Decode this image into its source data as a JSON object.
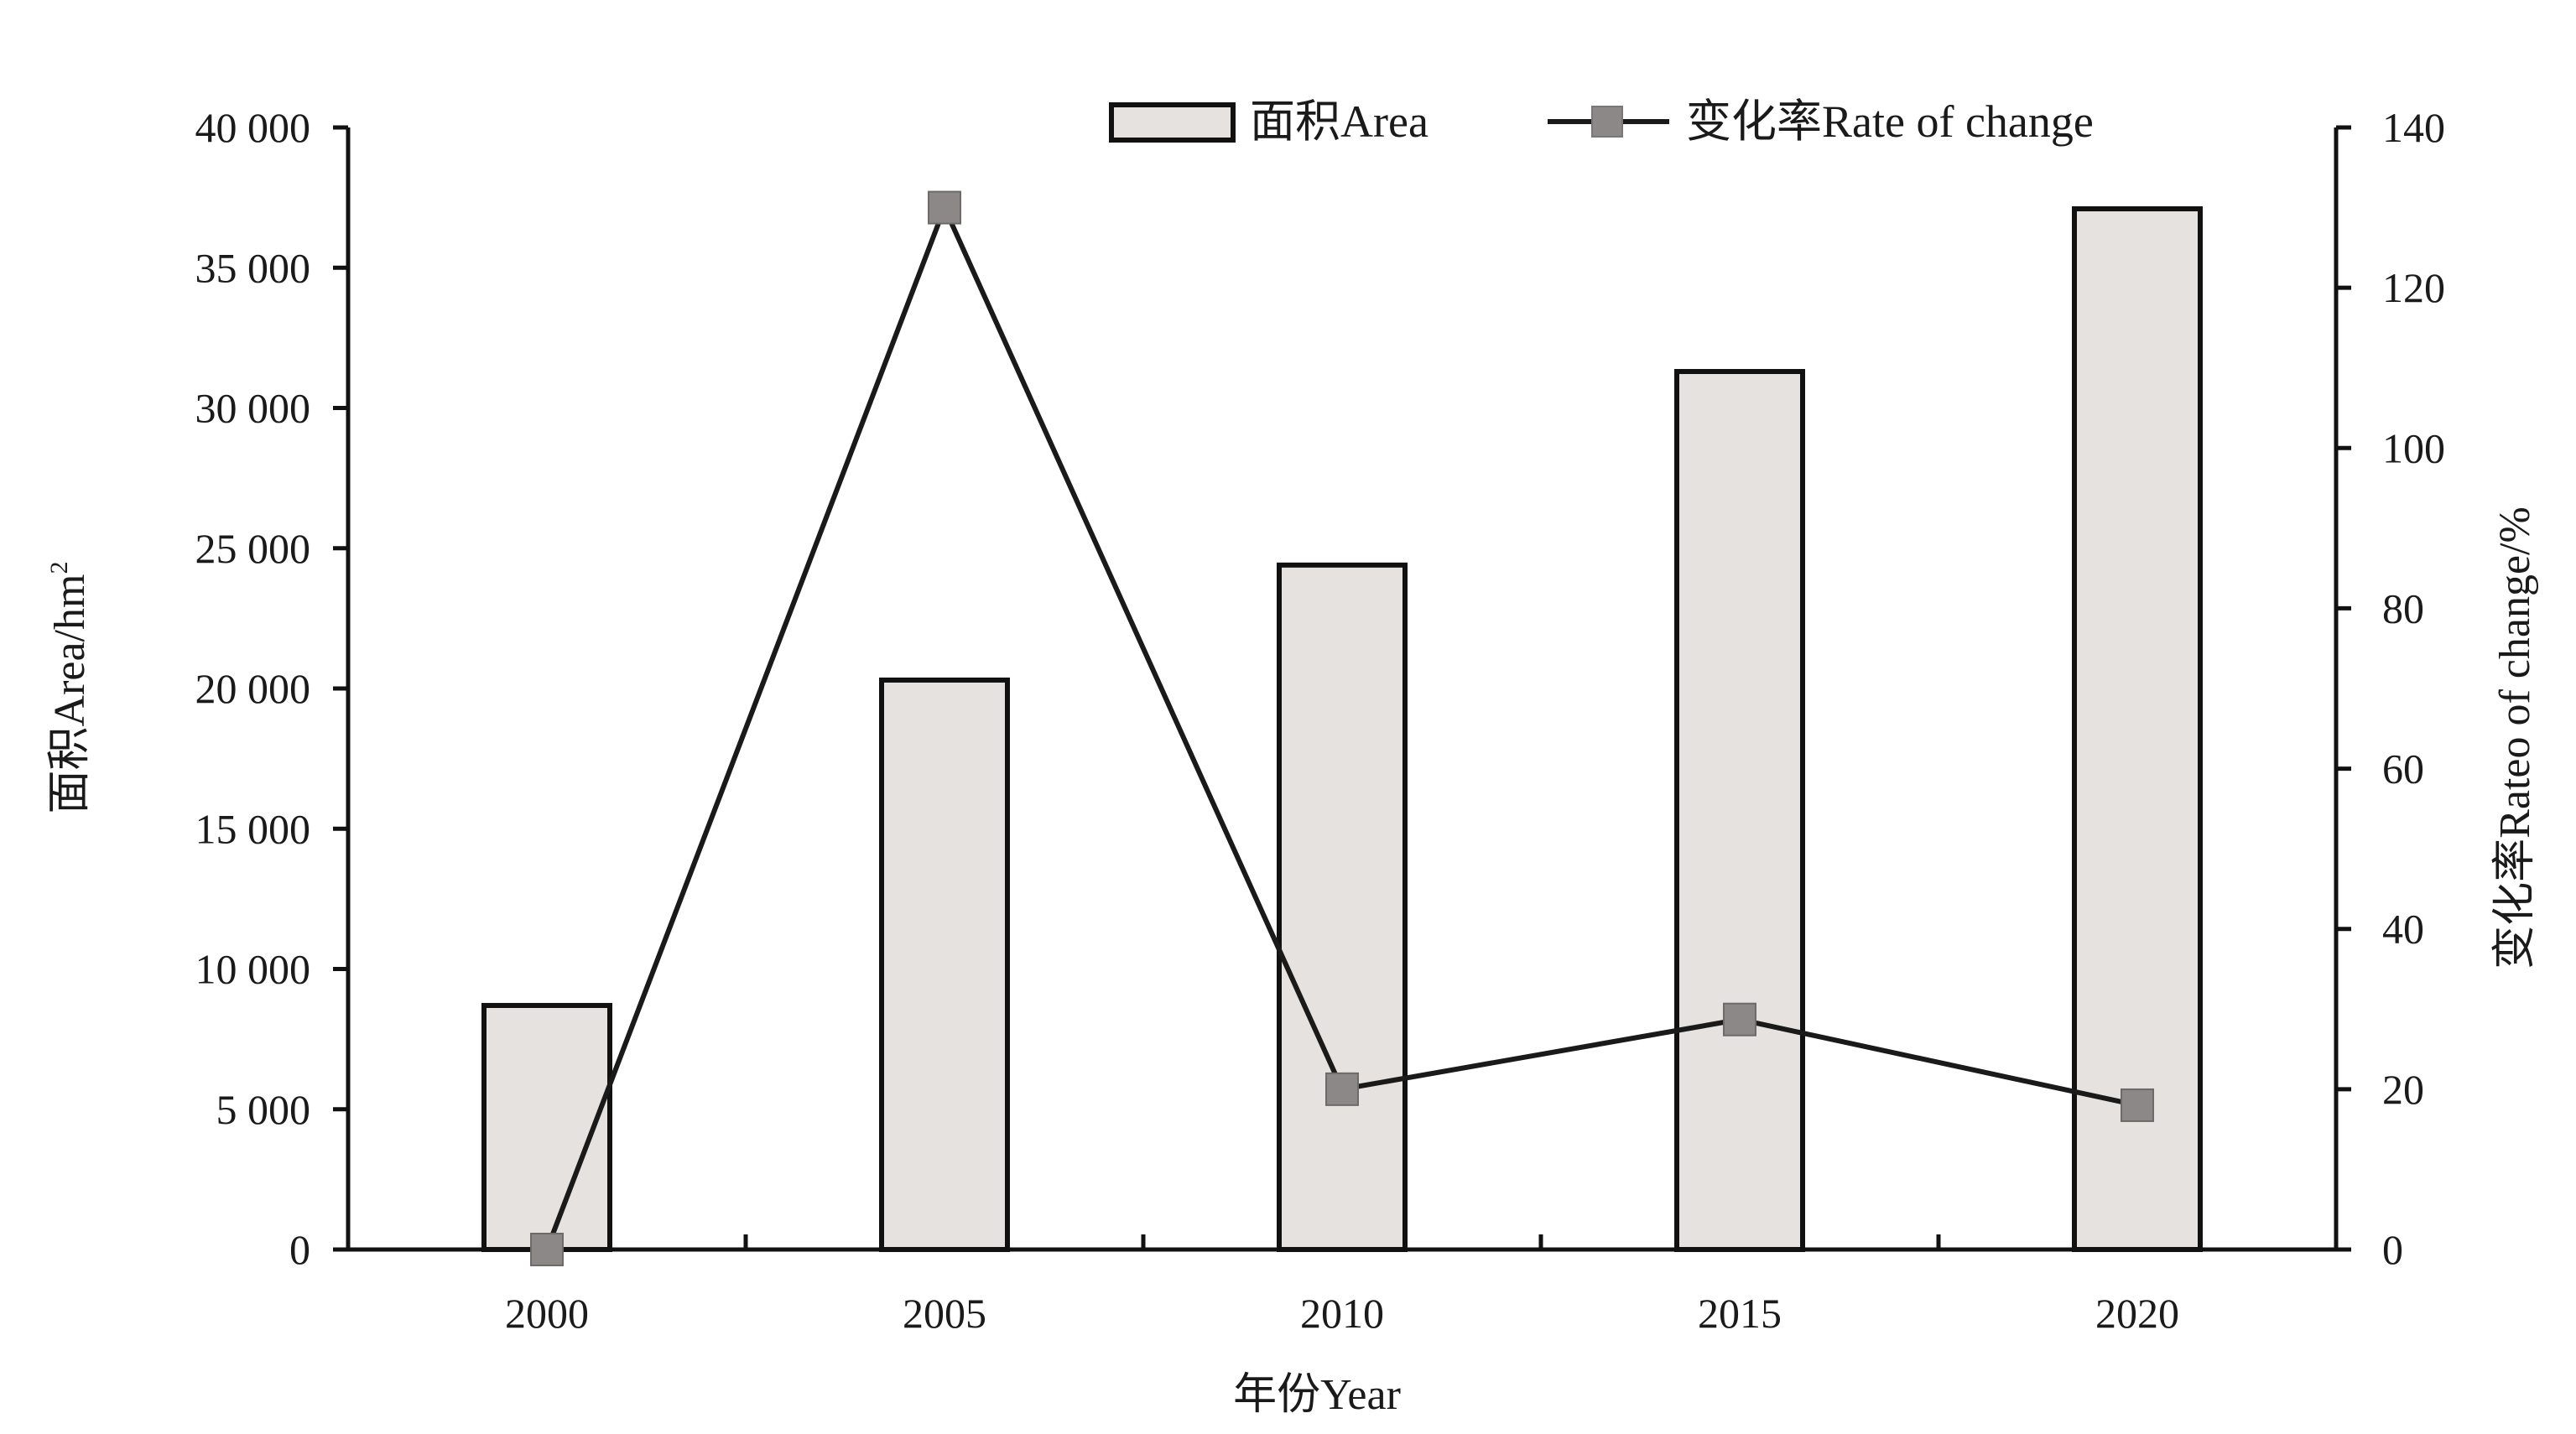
{
  "chart_data": {
    "type": "bar",
    "categories": [
      "2000",
      "2005",
      "2010",
      "2015",
      "2020"
    ],
    "series": [
      {
        "name": "面积Area",
        "type": "bar",
        "axis": "left",
        "values": [
          8700,
          20300,
          24400,
          31300,
          37100
        ]
      },
      {
        "name": "变化率Rate of change",
        "type": "line",
        "axis": "right",
        "values": [
          0,
          130,
          20,
          28.7,
          18
        ]
      }
    ],
    "xlabel": "年份Year",
    "ylabel": "面积Area/hm",
    "ylabel_sup": "2",
    "y2label": "变化率Rateo of change/%",
    "ylim": [
      0,
      40000
    ],
    "y2lim": [
      0,
      140
    ],
    "yticks": [
      0,
      5000,
      10000,
      15000,
      20000,
      25000,
      30000,
      35000,
      40000
    ],
    "ytick_labels": [
      "0",
      "5 000",
      "10 000",
      "15 000",
      "20 000",
      "25 000",
      "30 000",
      "35 000",
      "40 000"
    ],
    "y2ticks": [
      0,
      20,
      40,
      60,
      80,
      100,
      120,
      140
    ],
    "y2tick_labels": [
      "0",
      "20",
      "40",
      "60",
      "80",
      "100",
      "120",
      "140"
    ],
    "legend_position": "top",
    "grid": false,
    "colors": {
      "bar_fill": "#e6e2df",
      "bar_stroke": "#111111",
      "line": "#1a1a1a",
      "marker": "#8c8888"
    }
  }
}
